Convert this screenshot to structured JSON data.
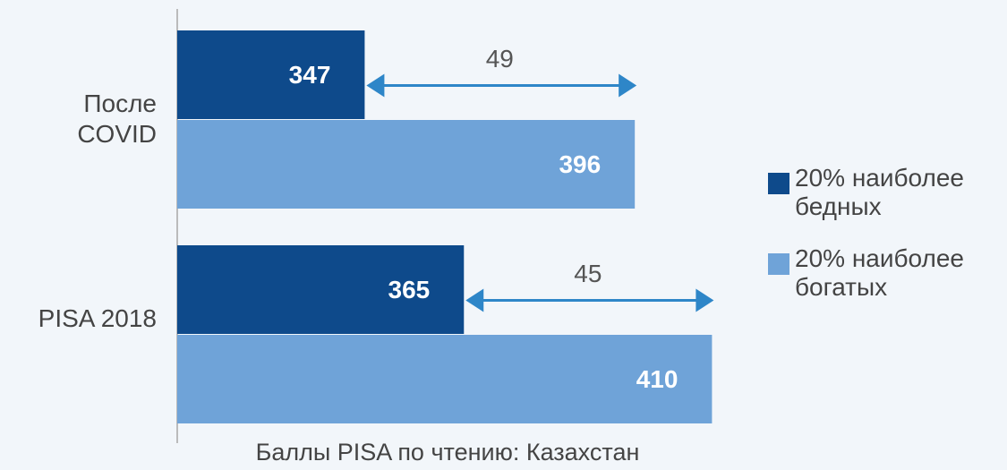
{
  "chart_data": {
    "type": "hbar",
    "categories": [
      "После COVID",
      "PISA 2018"
    ],
    "series": [
      {
        "name": "20% наиболее бедных",
        "color": "#0e4a8b",
        "values": [
          347,
          365
        ]
      },
      {
        "name": "20% наиболее богатых",
        "color": "#6fa3d8",
        "values": [
          396,
          410
        ]
      }
    ],
    "differences": [
      49,
      45
    ],
    "xlabel": "Баллы PISA по чтению: Казахстан",
    "xlim": [
      313,
      420
    ],
    "legend": "right"
  }
}
